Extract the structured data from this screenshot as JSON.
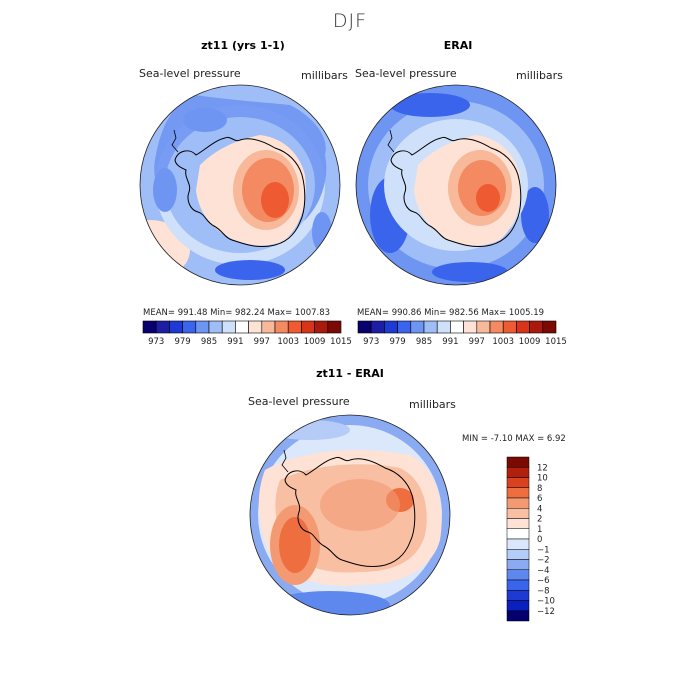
{
  "title": "DJF",
  "colors": {
    "abs_palette": [
      "#08006e",
      "#1e1ea5",
      "#1f3ad4",
      "#3a64ec",
      "#6e95f2",
      "#9fbdf7",
      "#cfe0fb",
      "#ffffff",
      "#fde2d5",
      "#f8b99a",
      "#f48a61",
      "#ee5a31",
      "#d8341a",
      "#aa1a0c",
      "#7a0a03"
    ],
    "diff_palette": [
      "#03006e",
      "#0a1fbf",
      "#1f3ad4",
      "#3a64ec",
      "#5f88ef",
      "#8aaaf2",
      "#b4ccf7",
      "#dbe7fb",
      "#ffffff",
      "#fde2d5",
      "#f8bfa3",
      "#f49a72",
      "#ee6e3f",
      "#d8421e",
      "#b0200c",
      "#7a0a03"
    ]
  },
  "panels": {
    "model": {
      "title": "zt11 (yrs 1-1)",
      "variable": "Sea-level pressure",
      "units": "millibars",
      "stats": "MEAN= 991.48   Min= 982.24   Max= 1007.83",
      "colorbar_ticks": [
        "973",
        "979",
        "985",
        "991",
        "997",
        "1003",
        "1009",
        "1015"
      ]
    },
    "obs": {
      "title": "ERAI",
      "variable": "Sea-level pressure",
      "units": "millibars",
      "stats": "MEAN= 990.86   Min= 982.56   Max= 1005.19",
      "colorbar_ticks": [
        "973",
        "979",
        "985",
        "991",
        "997",
        "1003",
        "1009",
        "1015"
      ]
    },
    "diff": {
      "title": "zt11 - ERAI",
      "variable": "Sea-level pressure",
      "units": "millibars",
      "stats": "MIN =   -7.10  MAX =    6.92",
      "colorbar_ticks": [
        "12",
        "10",
        "8",
        "6",
        "4",
        "2",
        "1",
        "0",
        "−1",
        "−2",
        "−4",
        "−6",
        "−8",
        "−10",
        "−12"
      ]
    }
  },
  "chart_data": [
    {
      "type": "heatmap",
      "title": "zt11 (yrs 1-1)",
      "projection": "south polar stereographic",
      "variable": "Sea-level pressure",
      "units": "millibars",
      "mean": 991.48,
      "min": 982.24,
      "max": 1007.83,
      "contour_levels": [
        973,
        976,
        979,
        982,
        985,
        988,
        991,
        994,
        997,
        1000,
        1003,
        1006,
        1009,
        1012,
        1015
      ]
    },
    {
      "type": "heatmap",
      "title": "ERAI",
      "projection": "south polar stereographic",
      "variable": "Sea-level pressure",
      "units": "millibars",
      "mean": 990.86,
      "min": 982.56,
      "max": 1005.19,
      "contour_levels": [
        973,
        976,
        979,
        982,
        985,
        988,
        991,
        994,
        997,
        1000,
        1003,
        1006,
        1009,
        1012,
        1015
      ]
    },
    {
      "type": "heatmap",
      "title": "zt11 - ERAI",
      "projection": "south polar stereographic",
      "variable": "Sea-level pressure",
      "units": "millibars",
      "min": -7.1,
      "max": 6.92,
      "contour_levels": [
        -12,
        -10,
        -8,
        -6,
        -4,
        -2,
        -1,
        0,
        1,
        2,
        4,
        6,
        8,
        10,
        12
      ]
    }
  ]
}
